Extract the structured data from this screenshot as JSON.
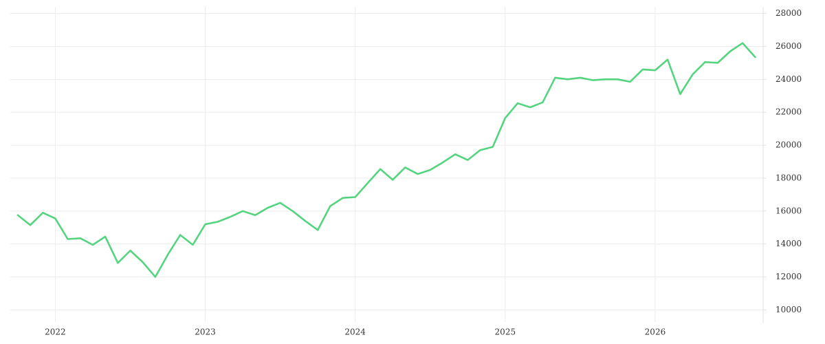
{
  "chart_data": {
    "type": "line",
    "x": [
      2021.75,
      2021.833,
      2021.917,
      2022.0,
      2022.083,
      2022.167,
      2022.25,
      2022.333,
      2022.417,
      2022.5,
      2022.583,
      2022.667,
      2022.75,
      2022.833,
      2022.917,
      2023.0,
      2023.083,
      2023.167,
      2023.25,
      2023.333,
      2023.417,
      2023.5,
      2023.583,
      2023.667,
      2023.75,
      2023.833,
      2023.917,
      2024.0,
      2024.083,
      2024.167,
      2024.25,
      2024.333,
      2024.417,
      2024.5,
      2024.583,
      2024.667,
      2024.75,
      2024.833,
      2024.917,
      2025.0,
      2025.083,
      2025.167,
      2025.25,
      2025.333,
      2025.417,
      2025.5,
      2025.583,
      2025.667,
      2025.75,
      2025.833,
      2025.917,
      2026.0,
      2026.083,
      2026.167,
      2026.25,
      2026.333,
      2026.417,
      2026.5,
      2026.583,
      2026.667
    ],
    "values": [
      15750,
      15150,
      15900,
      15550,
      14300,
      14350,
      13950,
      14450,
      12850,
      13600,
      12900,
      12000,
      13350,
      14550,
      13950,
      15200,
      15350,
      15650,
      16000,
      15750,
      16200,
      16500,
      16000,
      15400,
      14850,
      16300,
      16800,
      16850,
      17700,
      18550,
      17900,
      18650,
      18250,
      18500,
      18950,
      19450,
      19100,
      19700,
      19900,
      21650,
      22550,
      22300,
      22600,
      24100,
      24000,
      24100,
      23950,
      24000,
      24000,
      23850,
      24600,
      24550,
      25200,
      23100,
      24300,
      25050,
      25000,
      25700,
      26200,
      25350
    ],
    "color": "#55d47f",
    "xlim": [
      2021.7,
      2026.72
    ],
    "xticks": [
      2022,
      2023,
      2024,
      2025,
      2026
    ],
    "ylim": [
      9600,
      28400
    ],
    "yticks": [
      10000,
      12000,
      14000,
      16000,
      18000,
      20000,
      22000,
      24000,
      26000,
      28000
    ],
    "grid": true
  }
}
